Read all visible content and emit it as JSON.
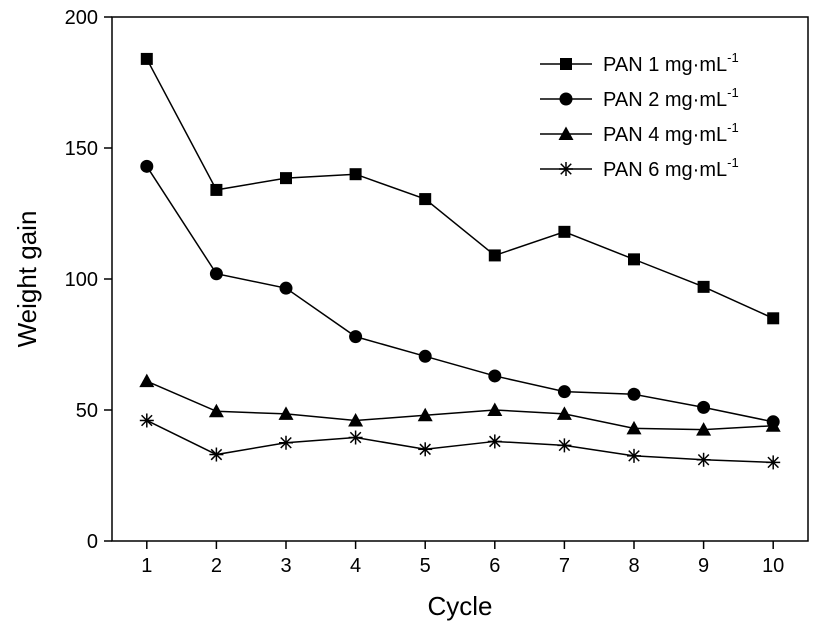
{
  "chart_data": {
    "type": "line",
    "xlabel": "Cycle",
    "ylabel": "Weight gain",
    "x": [
      1,
      2,
      3,
      4,
      5,
      6,
      7,
      8,
      9,
      10
    ],
    "xlim": [
      0.5,
      10.5
    ],
    "ylim": [
      0,
      200
    ],
    "yticks": [
      0,
      50,
      100,
      150,
      200
    ],
    "xticks": [
      1,
      2,
      3,
      4,
      5,
      6,
      7,
      8,
      9,
      10
    ],
    "grid": false,
    "legend_position": "top-right",
    "series": [
      {
        "name": "PAN 1 mg·mL",
        "name_sup": "-1",
        "marker": "square",
        "values": [
          184,
          134,
          138.5,
          140,
          130.5,
          109,
          118,
          107.5,
          97,
          85
        ]
      },
      {
        "name": "PAN 2 mg·mL",
        "name_sup": "-1",
        "marker": "circle",
        "values": [
          143,
          102,
          96.5,
          78,
          70.5,
          63,
          57,
          56,
          51,
          45.5
        ]
      },
      {
        "name": "PAN 4 mg·mL",
        "name_sup": "-1",
        "marker": "triangle",
        "values": [
          61,
          49.5,
          48.5,
          46,
          48,
          50,
          48.5,
          43,
          42.5,
          44
        ]
      },
      {
        "name": "PAN 6 mg·mL",
        "name_sup": "-1",
        "marker": "asterisk",
        "values": [
          46,
          33,
          37.5,
          39.5,
          35,
          38,
          36.5,
          32.5,
          31,
          30
        ]
      }
    ],
    "colors": {
      "line": "#000000",
      "marker": "#000000",
      "axis": "#000000"
    }
  }
}
